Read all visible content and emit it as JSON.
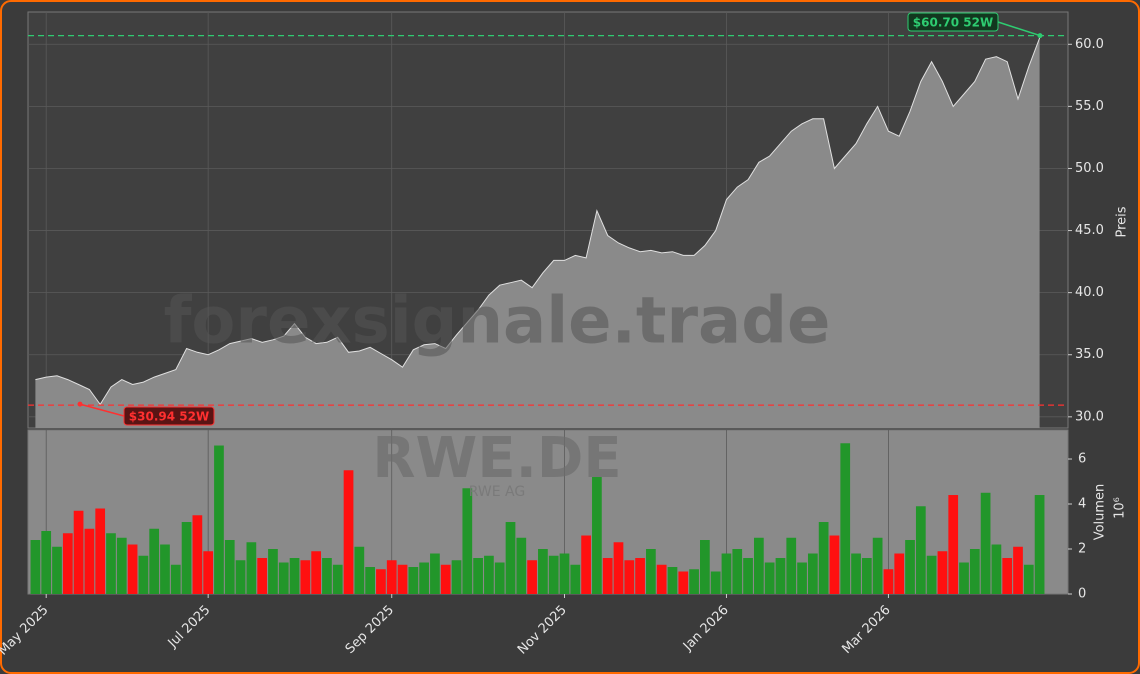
{
  "chart_data": {
    "type": "area",
    "watermark": "forexsignale.trade",
    "symbol": "RWE.DE",
    "company": "RWE AG",
    "ylabel": "Preis",
    "y2label": "Volumen",
    "y2unit": "10⁶",
    "ylim": [
      29.1,
      62.6
    ],
    "yticks": [
      {
        "value": 30,
        "label": "30.0"
      },
      {
        "value": 35,
        "label": "35.0"
      },
      {
        "value": 40,
        "label": "40.0"
      },
      {
        "value": 45,
        "label": "45.0"
      },
      {
        "value": 50,
        "label": "50.0"
      },
      {
        "value": 55,
        "label": "55.0"
      },
      {
        "value": 60,
        "label": "60.0"
      }
    ],
    "y2lim": [
      0,
      7.29
    ],
    "y2ticks": [
      0,
      2,
      4,
      6
    ],
    "xticks": [
      {
        "value": 1,
        "label": "May 2025"
      },
      {
        "value": 16,
        "label": "Jul 2025"
      },
      {
        "value": 33,
        "label": "Sep 2025"
      },
      {
        "value": 49,
        "label": "Nov 2025"
      },
      {
        "value": 64,
        "label": "Jan 2026"
      },
      {
        "value": 79,
        "label": "Mar 2026"
      }
    ],
    "grid": true,
    "series": [
      {
        "name": "Preis",
        "color": "#8a8a8a",
        "values": [
          33.0,
          33.2,
          33.3,
          33.0,
          32.6,
          32.2,
          31.0,
          32.4,
          33.0,
          32.6,
          32.8,
          33.2,
          33.5,
          33.8,
          35.5,
          35.2,
          35.0,
          35.4,
          35.9,
          36.1,
          36.3,
          36.0,
          36.2,
          36.5,
          37.5,
          36.4,
          35.9,
          36.0,
          36.4,
          35.2,
          35.3,
          35.6,
          35.1,
          34.6,
          34.0,
          35.4,
          35.8,
          35.9,
          35.5,
          36.6,
          37.6,
          38.6,
          39.8,
          40.6,
          40.8,
          41.0,
          40.4,
          41.6,
          42.6,
          42.6,
          43.0,
          42.8,
          46.6,
          44.6,
          44.0,
          43.6,
          43.3,
          43.4,
          43.2,
          43.3,
          43.0,
          43.0,
          43.8,
          45.0,
          47.5,
          48.5,
          49.1,
          50.5,
          51.0,
          52.0,
          53.0,
          53.6,
          54.0,
          54.0,
          50.0,
          51.0,
          52.0,
          53.6,
          55.0,
          53.0,
          52.6,
          54.6,
          57.0,
          58.6,
          57.0,
          55.0,
          56.0,
          57.0,
          58.8,
          59.0,
          58.6,
          55.6,
          58.2,
          60.5
        ]
      },
      {
        "name": "Volumen",
        "axis": "y2",
        "up_color": "#22962a",
        "down_color": "#ff1010",
        "values": [
          2.4,
          2.8,
          2.1,
          2.7,
          3.7,
          2.9,
          3.8,
          2.7,
          2.5,
          2.2,
          1.7,
          2.9,
          2.2,
          1.3,
          3.2,
          3.5,
          1.9,
          6.6,
          2.4,
          1.5,
          2.3,
          1.6,
          2.0,
          1.4,
          1.6,
          1.5,
          1.9,
          1.6,
          1.3,
          5.5,
          2.1,
          1.2,
          1.1,
          1.5,
          1.3,
          1.2,
          1.4,
          1.8,
          1.3,
          1.5,
          4.7,
          1.6,
          1.7,
          1.4,
          3.2,
          2.5,
          1.5,
          2.0,
          1.7,
          1.8,
          1.3,
          2.6,
          5.2,
          1.6,
          2.3,
          1.5,
          1.6,
          2.0,
          1.3,
          1.2,
          1.0,
          1.1,
          2.4,
          1.0,
          1.8,
          2.0,
          1.6,
          2.5,
          1.4,
          1.6,
          2.5,
          1.4,
          1.8,
          3.2,
          2.6,
          6.7,
          1.8,
          1.6,
          2.5,
          1.1,
          1.8,
          2.4,
          3.9,
          1.7,
          1.9,
          4.4,
          1.4,
          2.0,
          4.5,
          2.2,
          1.6,
          2.1,
          1.3,
          4.4
        ]
      }
    ],
    "annotations": [
      {
        "label": "$60.70 52W",
        "value": 60.7,
        "color": "#2ecc71"
      },
      {
        "label": "$30.94 52W",
        "value": 30.94,
        "color": "#ff3030"
      }
    ]
  }
}
